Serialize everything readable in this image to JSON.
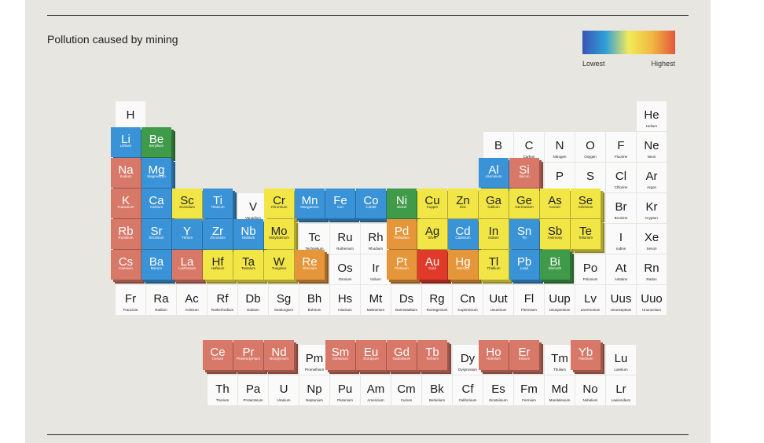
{
  "chart_data": {
    "type": "heatmap",
    "title": "Pollution caused by mining",
    "legend": {
      "low_label": "Lowest",
      "high_label": "Highest",
      "placement": "top-right"
    },
    "colors": {
      "blue": "#3a93d6",
      "green": "#3f9a4a",
      "yellow": "#f2e646",
      "orange": "#e6963a",
      "red": "#df3a2a",
      "salmon": "#d87868",
      "none": "#fafafa"
    },
    "elements": [
      {
        "symbol": "H",
        "name": "",
        "level": null,
        "row": 1,
        "col": 1
      },
      {
        "symbol": "He",
        "name": "Helium",
        "level": null,
        "row": 1,
        "col": 18
      },
      {
        "symbol": "Li",
        "name": "Lithium",
        "level": "blue",
        "row": 2,
        "col": 1
      },
      {
        "symbol": "Be",
        "name": "Beryllium",
        "level": "green",
        "row": 2,
        "col": 2
      },
      {
        "symbol": "B",
        "name": "",
        "level": null,
        "row": 2,
        "col": 13
      },
      {
        "symbol": "C",
        "name": "Carbon",
        "level": null,
        "row": 2,
        "col": 14
      },
      {
        "symbol": "N",
        "name": "Nitrogen",
        "level": null,
        "row": 2,
        "col": 15
      },
      {
        "symbol": "O",
        "name": "Oxygen",
        "level": null,
        "row": 2,
        "col": 16
      },
      {
        "symbol": "F",
        "name": "Fluorine",
        "level": null,
        "row": 2,
        "col": 17
      },
      {
        "symbol": "Ne",
        "name": "Neon",
        "level": null,
        "row": 2,
        "col": 18
      },
      {
        "symbol": "Na",
        "name": "Sodium",
        "level": "salmon",
        "row": 3,
        "col": 1
      },
      {
        "symbol": "Mg",
        "name": "Magnesium",
        "level": "blue",
        "row": 3,
        "col": 2
      },
      {
        "symbol": "Al",
        "name": "Aluminium",
        "level": "blue",
        "row": 3,
        "col": 13
      },
      {
        "symbol": "Si",
        "name": "Silicon",
        "level": "salmon",
        "row": 3,
        "col": 14
      },
      {
        "symbol": "P",
        "name": "",
        "level": null,
        "row": 3,
        "col": 15
      },
      {
        "symbol": "S",
        "name": "",
        "level": null,
        "row": 3,
        "col": 16
      },
      {
        "symbol": "Cl",
        "name": "Chlorine",
        "level": null,
        "row": 3,
        "col": 17
      },
      {
        "symbol": "Ar",
        "name": "Argon",
        "level": null,
        "row": 3,
        "col": 18
      },
      {
        "symbol": "K",
        "name": "Potassium",
        "level": "salmon",
        "row": 4,
        "col": 1
      },
      {
        "symbol": "Ca",
        "name": "Calcium",
        "level": "blue",
        "row": 4,
        "col": 2
      },
      {
        "symbol": "Sc",
        "name": "Scandium",
        "level": "yellow",
        "row": 4,
        "col": 3
      },
      {
        "symbol": "Ti",
        "name": "Titanium",
        "level": "blue",
        "row": 4,
        "col": 4
      },
      {
        "symbol": "V",
        "name": "Vanadium",
        "level": null,
        "row": 4,
        "col": 5
      },
      {
        "symbol": "Cr",
        "name": "Chromium",
        "level": "yellow",
        "row": 4,
        "col": 6
      },
      {
        "symbol": "Mn",
        "name": "Manganese",
        "level": "blue",
        "row": 4,
        "col": 7
      },
      {
        "symbol": "Fe",
        "name": "Iron",
        "level": "blue",
        "row": 4,
        "col": 8
      },
      {
        "symbol": "Co",
        "name": "Cobalt",
        "level": "blue",
        "row": 4,
        "col": 9
      },
      {
        "symbol": "Ni",
        "name": "Nickel",
        "level": "green",
        "row": 4,
        "col": 10
      },
      {
        "symbol": "Cu",
        "name": "Copper",
        "level": "yellow",
        "row": 4,
        "col": 11
      },
      {
        "symbol": "Zn",
        "name": "Zinc",
        "level": "yellow",
        "row": 4,
        "col": 12
      },
      {
        "symbol": "Ga",
        "name": "Gallium",
        "level": "yellow",
        "row": 4,
        "col": 13
      },
      {
        "symbol": "Ge",
        "name": "Germanium",
        "level": "yellow",
        "row": 4,
        "col": 14
      },
      {
        "symbol": "As",
        "name": "Arsenic",
        "level": "yellow",
        "row": 4,
        "col": 15
      },
      {
        "symbol": "Se",
        "name": "Selenium",
        "level": "yellow",
        "row": 4,
        "col": 16
      },
      {
        "symbol": "Br",
        "name": "Bromine",
        "level": null,
        "row": 4,
        "col": 17
      },
      {
        "symbol": "Kr",
        "name": "Krypton",
        "level": null,
        "row": 4,
        "col": 18
      },
      {
        "symbol": "Rb",
        "name": "Rubidium",
        "level": "salmon",
        "row": 5,
        "col": 1
      },
      {
        "symbol": "Sr",
        "name": "Strontium",
        "level": "blue",
        "row": 5,
        "col": 2
      },
      {
        "symbol": "Y",
        "name": "Yttrium",
        "level": "blue",
        "row": 5,
        "col": 3
      },
      {
        "symbol": "Zr",
        "name": "Zirconium",
        "level": "blue",
        "row": 5,
        "col": 4
      },
      {
        "symbol": "Nb",
        "name": "Niobium",
        "level": "blue",
        "row": 5,
        "col": 5
      },
      {
        "symbol": "Mo",
        "name": "Molybdenum",
        "level": "yellow",
        "row": 5,
        "col": 6
      },
      {
        "symbol": "Tc",
        "name": "Technetium",
        "level": null,
        "row": 5,
        "col": 7
      },
      {
        "symbol": "Ru",
        "name": "Ruthenium",
        "level": null,
        "row": 5,
        "col": 8
      },
      {
        "symbol": "Rh",
        "name": "Rhodium",
        "level": null,
        "row": 5,
        "col": 9
      },
      {
        "symbol": "Pd",
        "name": "Palladium",
        "level": "orange",
        "row": 5,
        "col": 10
      },
      {
        "symbol": "Ag",
        "name": "Silver",
        "level": "yellow",
        "row": 5,
        "col": 11
      },
      {
        "symbol": "Cd",
        "name": "Cadmium",
        "level": "blue",
        "row": 5,
        "col": 12
      },
      {
        "symbol": "In",
        "name": "Indium",
        "level": "yellow",
        "row": 5,
        "col": 13
      },
      {
        "symbol": "Sn",
        "name": "Tin",
        "level": "blue",
        "row": 5,
        "col": 14
      },
      {
        "symbol": "Sb",
        "name": "Antimony",
        "level": "yellow",
        "row": 5,
        "col": 15
      },
      {
        "symbol": "Te",
        "name": "Tellurium",
        "level": "yellow",
        "row": 5,
        "col": 16
      },
      {
        "symbol": "I",
        "name": "Iodine",
        "level": null,
        "row": 5,
        "col": 17
      },
      {
        "symbol": "Xe",
        "name": "Xenon",
        "level": null,
        "row": 5,
        "col": 18
      },
      {
        "symbol": "Cs",
        "name": "Caesium",
        "level": "salmon",
        "row": 6,
        "col": 1
      },
      {
        "symbol": "Ba",
        "name": "Barium",
        "level": "blue",
        "row": 6,
        "col": 2
      },
      {
        "symbol": "La",
        "name": "Lanthanum",
        "level": "salmon",
        "row": 6,
        "col": 3
      },
      {
        "symbol": "Hf",
        "name": "Hafnium",
        "level": "yellow",
        "row": 6,
        "col": 4
      },
      {
        "symbol": "Ta",
        "name": "Tantalum",
        "level": "yellow",
        "row": 6,
        "col": 5
      },
      {
        "symbol": "W",
        "name": "Tungsten",
        "level": "yellow",
        "row": 6,
        "col": 6
      },
      {
        "symbol": "Re",
        "name": "Rhenium",
        "level": "orange",
        "row": 6,
        "col": 7
      },
      {
        "symbol": "Os",
        "name": "Osmium",
        "level": null,
        "row": 6,
        "col": 8
      },
      {
        "symbol": "Ir",
        "name": "Iridium",
        "level": null,
        "row": 6,
        "col": 9
      },
      {
        "symbol": "Pt",
        "name": "Platinum",
        "level": "orange",
        "row": 6,
        "col": 10
      },
      {
        "symbol": "Au",
        "name": "Gold",
        "level": "red",
        "row": 6,
        "col": 11
      },
      {
        "symbol": "Hg",
        "name": "Mercury",
        "level": "orange",
        "row": 6,
        "col": 12
      },
      {
        "symbol": "Tl",
        "name": "Thallium",
        "level": "yellow",
        "row": 6,
        "col": 13
      },
      {
        "symbol": "Pb",
        "name": "Lead",
        "level": "blue",
        "row": 6,
        "col": 14
      },
      {
        "symbol": "Bi",
        "name": "Bismuth",
        "level": "green",
        "row": 6,
        "col": 15
      },
      {
        "symbol": "Po",
        "name": "Polonium",
        "level": null,
        "row": 6,
        "col": 16
      },
      {
        "symbol": "At",
        "name": "Astatine",
        "level": null,
        "row": 6,
        "col": 17
      },
      {
        "symbol": "Rn",
        "name": "Radon",
        "level": null,
        "row": 6,
        "col": 18
      },
      {
        "symbol": "Fr",
        "name": "Francium",
        "level": null,
        "row": 7,
        "col": 1
      },
      {
        "symbol": "Ra",
        "name": "Radium",
        "level": null,
        "row": 7,
        "col": 2
      },
      {
        "symbol": "Ac",
        "name": "Actinium",
        "level": null,
        "row": 7,
        "col": 3
      },
      {
        "symbol": "Rf",
        "name": "Rutherfordium",
        "level": null,
        "row": 7,
        "col": 4
      },
      {
        "symbol": "Db",
        "name": "Dubium",
        "level": null,
        "row": 7,
        "col": 5
      },
      {
        "symbol": "Sg",
        "name": "Seaborgium",
        "level": null,
        "row": 7,
        "col": 6
      },
      {
        "symbol": "Bh",
        "name": "Bohrium",
        "level": null,
        "row": 7,
        "col": 7
      },
      {
        "symbol": "Hs",
        "name": "Hassium",
        "level": null,
        "row": 7,
        "col": 8
      },
      {
        "symbol": "Mt",
        "name": "Meitnerium",
        "level": null,
        "row": 7,
        "col": 9
      },
      {
        "symbol": "Ds",
        "name": "Darmstadtium",
        "level": null,
        "row": 7,
        "col": 10
      },
      {
        "symbol": "Rg",
        "name": "Roentgenium",
        "level": null,
        "row": 7,
        "col": 11
      },
      {
        "symbol": "Cn",
        "name": "Copernicium",
        "level": null,
        "row": 7,
        "col": 12
      },
      {
        "symbol": "Uut",
        "name": "Ununtrium",
        "level": null,
        "row": 7,
        "col": 13
      },
      {
        "symbol": "Fl",
        "name": "Flerovium",
        "level": null,
        "row": 7,
        "col": 14
      },
      {
        "symbol": "Uup",
        "name": "Ununpentium",
        "level": null,
        "row": 7,
        "col": 15
      },
      {
        "symbol": "Lv",
        "name": "Livermorium",
        "level": null,
        "row": 7,
        "col": 16
      },
      {
        "symbol": "Uus",
        "name": "Ununseptium",
        "level": null,
        "row": 7,
        "col": 17
      },
      {
        "symbol": "Uuo",
        "name": "Ununoctium",
        "level": null,
        "row": 7,
        "col": 18
      },
      {
        "symbol": "Ce",
        "name": "Cerium",
        "level": "salmon",
        "row": 9,
        "col": 4
      },
      {
        "symbol": "Pr",
        "name": "Praseodymium",
        "level": "salmon",
        "row": 9,
        "col": 5
      },
      {
        "symbol": "Nd",
        "name": "Neodymium",
        "level": "salmon",
        "row": 9,
        "col": 6
      },
      {
        "symbol": "Pm",
        "name": "Promethium",
        "level": null,
        "row": 9,
        "col": 7
      },
      {
        "symbol": "Sm",
        "name": "Samarium",
        "level": "salmon",
        "row": 9,
        "col": 8
      },
      {
        "symbol": "Eu",
        "name": "Europium",
        "level": "salmon",
        "row": 9,
        "col": 9
      },
      {
        "symbol": "Gd",
        "name": "Gadolinium",
        "level": "salmon",
        "row": 9,
        "col": 10
      },
      {
        "symbol": "Tb",
        "name": "Terbium",
        "level": "salmon",
        "row": 9,
        "col": 11
      },
      {
        "symbol": "Dy",
        "name": "Dysprosium",
        "level": null,
        "row": 9,
        "col": 12
      },
      {
        "symbol": "Ho",
        "name": "Holmium",
        "level": "salmon",
        "row": 9,
        "col": 13
      },
      {
        "symbol": "Er",
        "name": "Erbium",
        "level": "salmon",
        "row": 9,
        "col": 14
      },
      {
        "symbol": "Tm",
        "name": "Thulium",
        "level": null,
        "row": 9,
        "col": 15
      },
      {
        "symbol": "Yb",
        "name": "Ytterbium",
        "level": "salmon",
        "row": 9,
        "col": 16
      },
      {
        "symbol": "Lu",
        "name": "Lutetium",
        "level": null,
        "row": 9,
        "col": 17
      },
      {
        "symbol": "Th",
        "name": "Thorium",
        "level": null,
        "row": 10,
        "col": 4
      },
      {
        "symbol": "Pa",
        "name": "Protactinium",
        "level": null,
        "row": 10,
        "col": 5
      },
      {
        "symbol": "U",
        "name": "Uranium",
        "level": null,
        "row": 10,
        "col": 6
      },
      {
        "symbol": "Np",
        "name": "Neptunium",
        "level": null,
        "row": 10,
        "col": 7
      },
      {
        "symbol": "Pu",
        "name": "Plutonium",
        "level": null,
        "row": 10,
        "col": 8
      },
      {
        "symbol": "Am",
        "name": "Americium",
        "level": null,
        "row": 10,
        "col": 9
      },
      {
        "symbol": "Cm",
        "name": "Curium",
        "level": null,
        "row": 10,
        "col": 10
      },
      {
        "symbol": "Bk",
        "name": "Berkelium",
        "level": null,
        "row": 10,
        "col": 11
      },
      {
        "symbol": "Cf",
        "name": "Californium",
        "level": null,
        "row": 10,
        "col": 12
      },
      {
        "symbol": "Es",
        "name": "Einsteinium",
        "level": null,
        "row": 10,
        "col": 13
      },
      {
        "symbol": "Fm",
        "name": "Fermium",
        "level": null,
        "row": 10,
        "col": 14
      },
      {
        "symbol": "Md",
        "name": "Mandelevium",
        "level": null,
        "row": 10,
        "col": 15
      },
      {
        "symbol": "No",
        "name": "Nobelium",
        "level": null,
        "row": 10,
        "col": 16
      },
      {
        "symbol": "Lr",
        "name": "Lawrendium",
        "level": null,
        "row": 10,
        "col": 17
      }
    ]
  }
}
